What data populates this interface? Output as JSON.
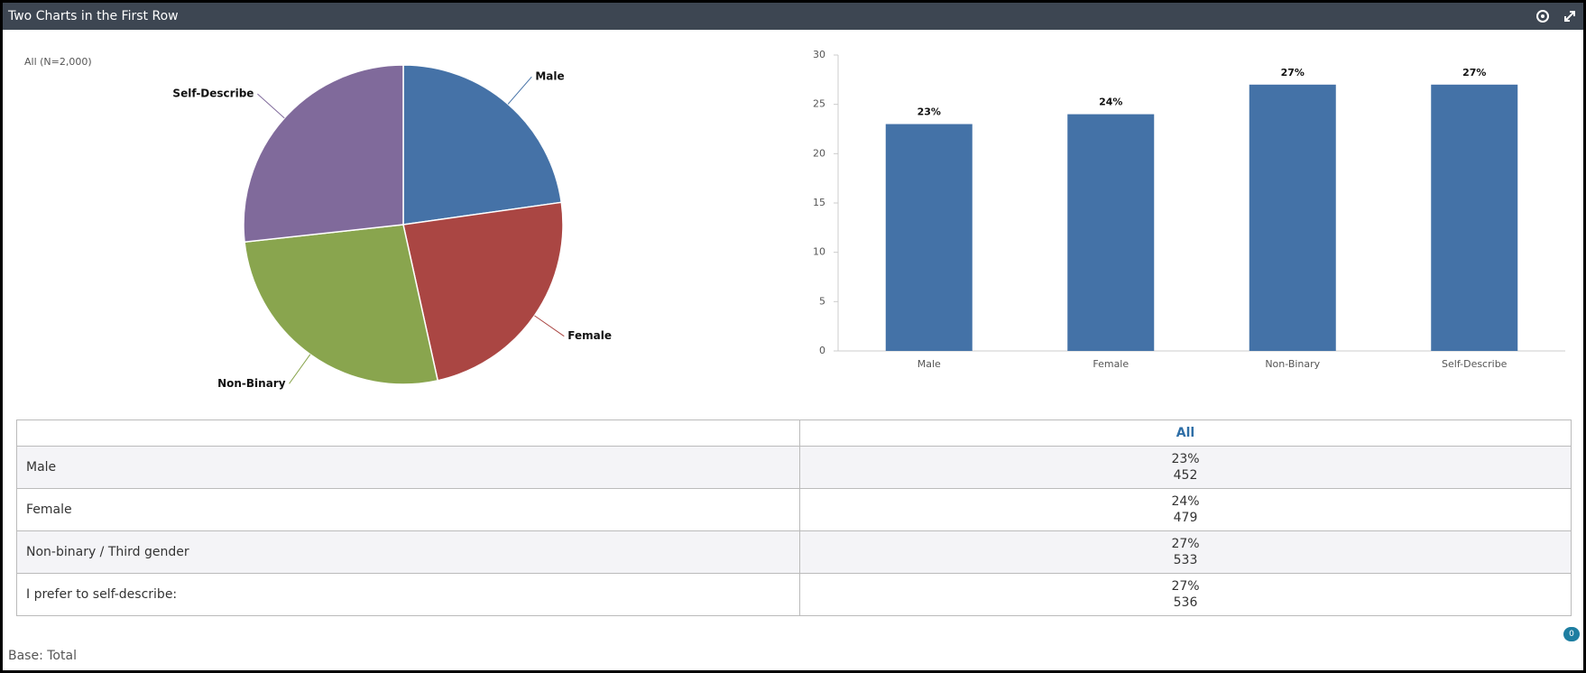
{
  "header": {
    "title": "Two Charts in the First Row"
  },
  "chart_data": [
    {
      "type": "pie",
      "subtitle": "All (N=2,000)",
      "categories": [
        "Male",
        "Female",
        "Non-Binary",
        "Self-Describe"
      ],
      "values": [
        23,
        24,
        27,
        27
      ],
      "colors": [
        "#4572a7",
        "#aa4643",
        "#89a54e",
        "#806a9b"
      ]
    },
    {
      "type": "bar",
      "categories": [
        "Male",
        "Female",
        "Non-Binary",
        "Self-Describe"
      ],
      "values": [
        23,
        24,
        27,
        27
      ],
      "value_labels": [
        "23%",
        "24%",
        "27%",
        "27%"
      ],
      "color": "#4472a7",
      "ylim": [
        0,
        30
      ],
      "yticks": [
        0,
        5,
        10,
        15,
        20,
        25,
        30
      ]
    }
  ],
  "table": {
    "columns": [
      "All"
    ],
    "rows": [
      {
        "label": "Male",
        "percent": "23%",
        "count": 452
      },
      {
        "label": "Female",
        "percent": "24%",
        "count": 479
      },
      {
        "label": "Non-binary / Third gender",
        "percent": "27%",
        "count": 533
      },
      {
        "label": "I prefer to self-describe:",
        "percent": "27%",
        "count": 536
      }
    ]
  },
  "footer": {
    "base": "Base: Total",
    "comments": 0
  }
}
